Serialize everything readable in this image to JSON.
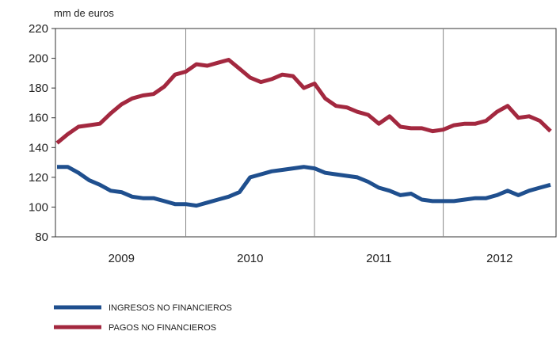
{
  "chart_data": {
    "type": "line",
    "unit_label": "mm de euros",
    "x_tick_labels": [
      "2009",
      "2010",
      "2011",
      "2012"
    ],
    "year_dividers": [
      2010,
      2011,
      2012
    ],
    "x_range": [
      2009,
      2013
    ],
    "ylim": [
      80,
      220
    ],
    "y_ticks": [
      80,
      100,
      120,
      140,
      160,
      180,
      200,
      220
    ],
    "grid": false,
    "legend_position": "bottom-left",
    "series": [
      {
        "name": "INGRESOS NO FINANCIEROS",
        "color": "#1f4f8e",
        "x": [
          2009.0,
          2009.083,
          2009.167,
          2009.25,
          2009.333,
          2009.417,
          2009.5,
          2009.583,
          2009.667,
          2009.75,
          2009.833,
          2009.917,
          2010.0,
          2010.083,
          2010.167,
          2010.25,
          2010.333,
          2010.417,
          2010.5,
          2010.583,
          2010.667,
          2010.75,
          2010.833,
          2010.917,
          2011.0,
          2011.083,
          2011.167,
          2011.25,
          2011.333,
          2011.417,
          2011.5,
          2011.583,
          2011.667,
          2011.75,
          2011.833,
          2011.917,
          2012.0,
          2012.083,
          2012.167,
          2012.25,
          2012.333,
          2012.417,
          2012.5,
          2012.583,
          2012.667,
          2012.75,
          2012.833
        ],
        "values": [
          127,
          127,
          123,
          118,
          115,
          111,
          110,
          107,
          106,
          106,
          104,
          102,
          102,
          101,
          103,
          105,
          107,
          110,
          120,
          122,
          124,
          125,
          126,
          127,
          126,
          123,
          122,
          121,
          120,
          117,
          113,
          111,
          108,
          109,
          105,
          104,
          104,
          104,
          105,
          106,
          106,
          108,
          111,
          108,
          111,
          113,
          115
        ]
      },
      {
        "name": "PAGOS NO FINANCIEROS",
        "color": "#a3283f",
        "x": [
          2009.0,
          2009.083,
          2009.167,
          2009.25,
          2009.333,
          2009.417,
          2009.5,
          2009.583,
          2009.667,
          2009.75,
          2009.833,
          2009.917,
          2010.0,
          2010.083,
          2010.167,
          2010.25,
          2010.333,
          2010.417,
          2010.5,
          2010.583,
          2010.667,
          2010.75,
          2010.833,
          2010.917,
          2011.0,
          2011.083,
          2011.167,
          2011.25,
          2011.333,
          2011.417,
          2011.5,
          2011.583,
          2011.667,
          2011.75,
          2011.833,
          2011.917,
          2012.0,
          2012.083,
          2012.167,
          2012.25,
          2012.333,
          2012.417,
          2012.5,
          2012.583,
          2012.667,
          2012.75,
          2012.833
        ],
        "values": [
          143,
          149,
          154,
          155,
          156,
          163,
          169,
          173,
          175,
          176,
          181,
          189,
          191,
          196,
          195,
          197,
          199,
          193,
          187,
          184,
          186,
          189,
          188,
          180,
          183,
          173,
          168,
          167,
          164,
          162,
          156,
          161,
          154,
          153,
          153,
          151,
          152,
          155,
          156,
          156,
          158,
          164,
          168,
          160,
          161,
          158,
          151
        ]
      }
    ]
  }
}
